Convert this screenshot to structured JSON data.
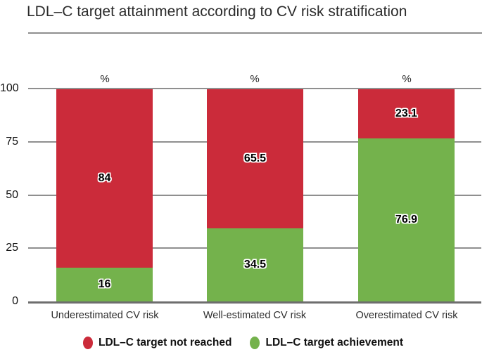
{
  "figure": {
    "title": "LDL–C target attainment according to CV risk stratification"
  },
  "chart_data": {
    "type": "bar",
    "stacked": true,
    "title": "LDL–C target attainment according to CV risk stratification",
    "unit_label": "%",
    "categories": [
      "Underestimated CV risk",
      "Well-estimated CV risk",
      "Overestimated CV risk"
    ],
    "series": [
      {
        "name": "LDL–C target not reached",
        "color": "#cb2b3a",
        "values": [
          84,
          65.5,
          23.1
        ]
      },
      {
        "name": "LDL–C target achievement",
        "color": "#74b24c",
        "values": [
          16,
          34.5,
          76.9
        ]
      }
    ],
    "yticks": [
      0,
      25,
      50,
      75,
      100
    ],
    "ylim": [
      0,
      100
    ],
    "grid": true,
    "gridline_color": "#8f8f8f",
    "legend_position": "bottom"
  },
  "legend": {
    "items": [
      {
        "label": "LDL–C target not reached",
        "color": "#cb2b3a"
      },
      {
        "label": "LDL–C target achievement",
        "color": "#74b24c"
      }
    ]
  }
}
